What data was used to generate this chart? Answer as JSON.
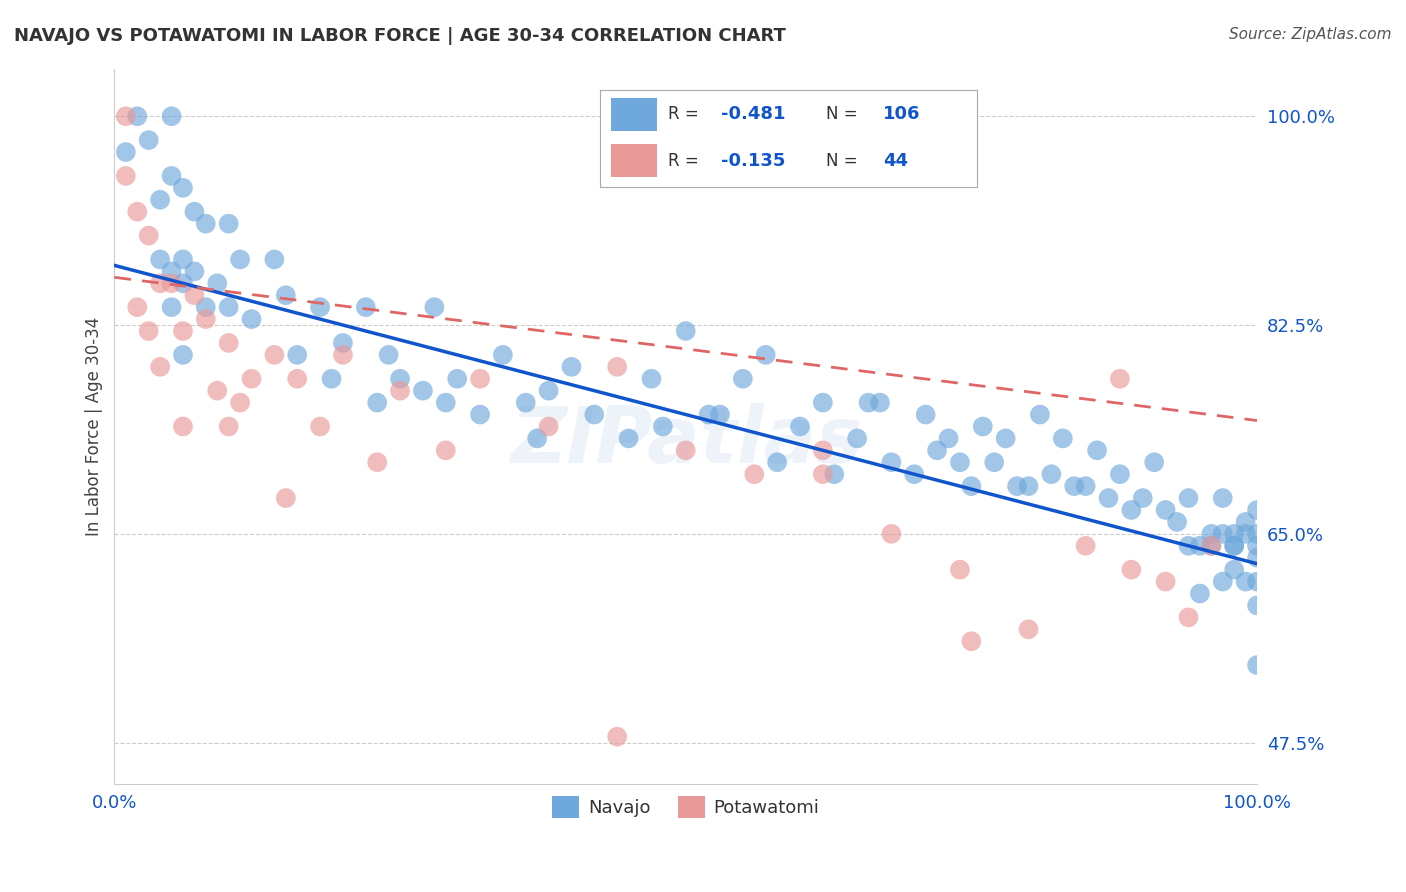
{
  "title": "NAVAJO VS POTAWATOMI IN LABOR FORCE | AGE 30-34 CORRELATION CHART",
  "source_text": "Source: ZipAtlas.com",
  "ylabel": "In Labor Force | Age 30-34",
  "xlim": [
    0.0,
    1.0
  ],
  "ylim": [
    0.44,
    1.04
  ],
  "yticks": [
    0.475,
    0.65,
    0.825,
    1.0
  ],
  "ytick_labels": [
    "47.5%",
    "65.0%",
    "82.5%",
    "100.0%"
  ],
  "xticks": [
    0.0,
    1.0
  ],
  "xtick_labels": [
    "0.0%",
    "100.0%"
  ],
  "navajo_R": -0.481,
  "navajo_N": 106,
  "potawatomi_R": -0.135,
  "potawatomi_N": 44,
  "navajo_color": "#6fa8dc",
  "potawatomi_color": "#ea9999",
  "navajo_line_color": "#1155cc",
  "potawatomi_line_color": "#e06666",
  "background_color": "#ffffff",
  "grid_color": "#cccccc",
  "watermark_text": "ZIPatlas",
  "navajo_line_start": 0.875,
  "navajo_line_end": 0.625,
  "potawatomi_line_start": 0.865,
  "potawatomi_line_end": 0.745,
  "navajo_x": [
    0.01,
    0.02,
    0.03,
    0.04,
    0.04,
    0.05,
    0.05,
    0.05,
    0.05,
    0.06,
    0.06,
    0.06,
    0.06,
    0.07,
    0.07,
    0.08,
    0.08,
    0.09,
    0.1,
    0.1,
    0.11,
    0.12,
    0.14,
    0.15,
    0.16,
    0.18,
    0.19,
    0.2,
    0.22,
    0.23,
    0.24,
    0.25,
    0.27,
    0.28,
    0.29,
    0.3,
    0.32,
    0.34,
    0.36,
    0.37,
    0.38,
    0.4,
    0.42,
    0.45,
    0.47,
    0.48,
    0.5,
    0.52,
    0.53,
    0.55,
    0.57,
    0.58,
    0.6,
    0.62,
    0.63,
    0.65,
    0.66,
    0.67,
    0.68,
    0.7,
    0.71,
    0.72,
    0.73,
    0.74,
    0.75,
    0.76,
    0.77,
    0.78,
    0.79,
    0.8,
    0.81,
    0.82,
    0.83,
    0.84,
    0.85,
    0.86,
    0.87,
    0.88,
    0.89,
    0.9,
    0.91,
    0.92,
    0.93,
    0.94,
    0.94,
    0.95,
    0.95,
    0.96,
    0.96,
    0.97,
    0.97,
    0.97,
    0.98,
    0.98,
    0.98,
    0.98,
    0.99,
    0.99,
    0.99,
    1.0,
    1.0,
    1.0,
    1.0,
    1.0,
    1.0,
    1.0
  ],
  "navajo_y": [
    0.97,
    1.0,
    0.98,
    0.93,
    0.88,
    1.0,
    0.95,
    0.87,
    0.84,
    0.94,
    0.88,
    0.86,
    0.8,
    0.92,
    0.87,
    0.91,
    0.84,
    0.86,
    0.91,
    0.84,
    0.88,
    0.83,
    0.88,
    0.85,
    0.8,
    0.84,
    0.78,
    0.81,
    0.84,
    0.76,
    0.8,
    0.78,
    0.77,
    0.84,
    0.76,
    0.78,
    0.75,
    0.8,
    0.76,
    0.73,
    0.77,
    0.79,
    0.75,
    0.73,
    0.78,
    0.74,
    0.82,
    0.75,
    0.75,
    0.78,
    0.8,
    0.71,
    0.74,
    0.76,
    0.7,
    0.73,
    0.76,
    0.76,
    0.71,
    0.7,
    0.75,
    0.72,
    0.73,
    0.71,
    0.69,
    0.74,
    0.71,
    0.73,
    0.69,
    0.69,
    0.75,
    0.7,
    0.73,
    0.69,
    0.69,
    0.72,
    0.68,
    0.7,
    0.67,
    0.68,
    0.71,
    0.67,
    0.66,
    0.68,
    0.64,
    0.64,
    0.6,
    0.65,
    0.64,
    0.68,
    0.61,
    0.65,
    0.65,
    0.64,
    0.62,
    0.64,
    0.66,
    0.61,
    0.65,
    0.67,
    0.63,
    0.59,
    0.54,
    0.64,
    0.61,
    0.65
  ],
  "potawatomi_x": [
    0.01,
    0.01,
    0.02,
    0.02,
    0.03,
    0.03,
    0.04,
    0.04,
    0.05,
    0.06,
    0.06,
    0.07,
    0.08,
    0.09,
    0.1,
    0.11,
    0.12,
    0.14,
    0.16,
    0.18,
    0.2,
    0.23,
    0.25,
    0.29,
    0.32,
    0.38,
    0.44,
    0.5,
    0.56,
    0.62,
    0.68,
    0.74,
    0.8,
    0.85,
    0.89,
    0.92,
    0.94,
    0.96,
    0.1,
    0.15,
    0.44,
    0.62,
    0.75,
    0.88
  ],
  "potawatomi_y": [
    1.0,
    0.95,
    0.92,
    0.84,
    0.9,
    0.82,
    0.86,
    0.79,
    0.86,
    0.82,
    0.74,
    0.85,
    0.83,
    0.77,
    0.81,
    0.76,
    0.78,
    0.8,
    0.78,
    0.74,
    0.8,
    0.71,
    0.77,
    0.72,
    0.78,
    0.74,
    0.79,
    0.72,
    0.7,
    0.72,
    0.65,
    0.62,
    0.57,
    0.64,
    0.62,
    0.61,
    0.58,
    0.64,
    0.74,
    0.68,
    0.48,
    0.7,
    0.56,
    0.78
  ]
}
